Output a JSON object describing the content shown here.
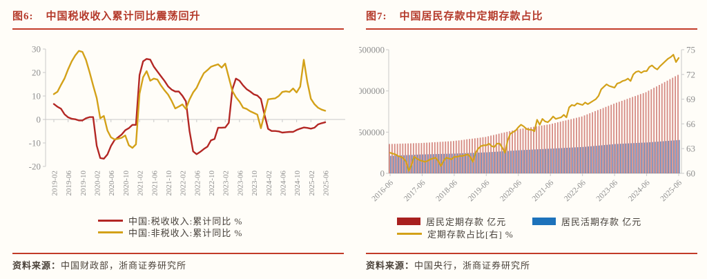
{
  "left_panel": {
    "fig_label": "图6:",
    "title": "中国税收收入累计同比震荡回升",
    "source_label": "资料来源：",
    "source": "中国财政部，浙商证券研究所"
  },
  "right_panel": {
    "fig_label": "图7:",
    "title": "中国居民存款中定期存款占比",
    "source_label": "资料来源：",
    "source": "中国央行，浙商证券研究所"
  },
  "chart_data": [
    {
      "type": "line",
      "title": "中国税收收入累计同比震荡回升",
      "x_start": "2019-02",
      "x_freq": "monthly",
      "x_tick_labels": [
        "2019-02",
        "2019-06",
        "2019-10",
        "2020-02",
        "2020-06",
        "2020-10",
        "2021-02",
        "2021-06",
        "2021-10",
        "2022-02",
        "2022-06",
        "2022-10",
        "2023-02",
        "2023-06",
        "2023-10",
        "2024-02",
        "2024-06",
        "2024-10",
        "2025-02",
        "2025-06"
      ],
      "ylim": [
        -20,
        30
      ],
      "yticks": [
        30,
        20,
        10,
        0,
        -10,
        -20
      ],
      "grid": "zero-line-only",
      "legend_position": "bottom",
      "series": [
        {
          "name": "中国:税收收入:累计同比 %",
          "color": "#b32724",
          "values": [
            6.6,
            5.4,
            4.6,
            2.2,
            0.9,
            0.3,
            0.1,
            -0.4,
            -0.4,
            0.5,
            1.0,
            1.0,
            -11.2,
            -16.4,
            -16.7,
            -14.9,
            -11.3,
            -8.8,
            -7.6,
            -6.4,
            -4.6,
            -3.7,
            -2.3,
            -2.3,
            18.9,
            24.8,
            25.8,
            25.5,
            22.5,
            20.4,
            18.4,
            16.4,
            14.1,
            12.7,
            11.9,
            11.9,
            10.1,
            7.7,
            -4.9,
            -13.6,
            -14.8,
            -13.8,
            -12.6,
            -11.6,
            -8.9,
            -8.3,
            -3.5,
            -3.5,
            -3.4,
            -1.4,
            12.9,
            17.4,
            16.5,
            14.5,
            12.9,
            11.9,
            10.7,
            10.2,
            8.7,
            2.0,
            -4.0,
            -4.9,
            -4.9,
            -5.1,
            -5.6,
            -5.4,
            -5.3,
            -5.3,
            -4.5,
            -3.9,
            -3.4,
            -3.6,
            -3.9,
            -3.5,
            -2.1,
            -1.6,
            -1.2
          ]
        },
        {
          "name": "中国:非税收入:累计同比 %",
          "color": "#d3a119",
          "values": [
            10.8,
            11.8,
            14.7,
            17.5,
            21.4,
            24.8,
            27.3,
            29.2,
            28.8,
            25.4,
            20.2,
            14.5,
            9.1,
            0.5,
            1.5,
            -4.7,
            -7.6,
            -8.5,
            -8.2,
            -7.8,
            -6.8,
            -11.0,
            -12.1,
            -10.6,
            11.0,
            18.0,
            20.6,
            16.5,
            17.4,
            17.0,
            14.5,
            12.4,
            10.6,
            7.9,
            4.7,
            5.5,
            6.4,
            4.5,
            8.5,
            11.5,
            13.5,
            16.8,
            19.7,
            21.0,
            22.4,
            23.0,
            23.5,
            22.1,
            23.8,
            17.9,
            12.1,
            9.5,
            7.6,
            5.0,
            4.5,
            3.5,
            2.8,
            2.1,
            -3.7,
            2.5,
            8.6,
            8.8,
            9.0,
            10.0,
            11.7,
            12.0,
            11.7,
            13.2,
            11.5,
            14.0,
            25.4,
            16.0,
            8.8,
            6.5,
            5.0,
            4.2,
            3.7
          ]
        }
      ]
    },
    {
      "type": "bar+line",
      "title": "中国居民存款中定期存款占比",
      "x_start": "2016-06",
      "x_freq": "monthly",
      "x_tick_labels": [
        "2016-06",
        "2017-06",
        "2018-06",
        "2019-06",
        "2020-06",
        "2021-06",
        "2022-06",
        "2023-06",
        "2024-06",
        "2025-06"
      ],
      "left_ylim": [
        0,
        1500000
      ],
      "left_yticks": [
        0,
        500000,
        1000000,
        1500000
      ],
      "right_ylim": [
        60,
        75
      ],
      "right_yticks": [
        60,
        63,
        66,
        69,
        72,
        75
      ],
      "legend_position": "bottom",
      "bar_series": [
        {
          "name": "居民定期存款 亿元",
          "color": "#a8201f",
          "bar_fill": "#bb443c",
          "values": [
            356000,
            357000,
            358000,
            359000,
            360000,
            361000,
            362000,
            363000,
            364000,
            365000,
            366000,
            367000,
            368000,
            370000,
            372000,
            374000,
            376000,
            378000,
            380000,
            382000,
            384000,
            386000,
            388000,
            390000,
            392000,
            396000,
            400000,
            404000,
            408000,
            413000,
            417000,
            421000,
            425000,
            429000,
            433000,
            438000,
            442000,
            450000,
            458000,
            465000,
            473000,
            481000,
            489000,
            496000,
            504000,
            512000,
            519000,
            527000,
            535000,
            540000,
            545000,
            550000,
            555000,
            560000,
            565000,
            570000,
            575000,
            580000,
            585000,
            590000,
            595000,
            603000,
            611000,
            619000,
            627000,
            635000,
            642000,
            650000,
            658000,
            666000,
            674000,
            682000,
            690000,
            703000,
            716000,
            729000,
            742000,
            755000,
            768000,
            780000,
            793000,
            806000,
            819000,
            832000,
            845000,
            857000,
            868000,
            880000,
            892000,
            903000,
            915000,
            927000,
            938000,
            950000,
            962000,
            973000,
            985000,
            1003000,
            1020000,
            1038000,
            1055000,
            1073000,
            1090000,
            1108000,
            1125000,
            1143000,
            1160000,
            1178000,
            1195000
          ]
        },
        {
          "name": "居民活期存款 亿元",
          "color": "#1d72bb",
          "bar_fill": "#4467a8",
          "values": [
            212000,
            213500,
            215000,
            216500,
            218000,
            219500,
            221000,
            222500,
            224000,
            225500,
            227000,
            228500,
            230000,
            230800,
            231700,
            232500,
            233300,
            234200,
            235000,
            235800,
            236700,
            237500,
            238300,
            239200,
            240000,
            241300,
            242500,
            243800,
            245000,
            246300,
            247500,
            248800,
            250000,
            251300,
            252500,
            253800,
            255000,
            257100,
            259200,
            261300,
            263300,
            265400,
            267500,
            269600,
            271700,
            273800,
            275800,
            277900,
            280000,
            281700,
            283300,
            285000,
            286700,
            288300,
            290000,
            291700,
            293300,
            295000,
            296700,
            298300,
            300000,
            301700,
            303300,
            305000,
            306700,
            308300,
            310000,
            311700,
            313300,
            315000,
            316700,
            318300,
            320000,
            322900,
            325800,
            328800,
            331700,
            334600,
            337500,
            340400,
            343300,
            346300,
            349200,
            352100,
            355000,
            356700,
            358300,
            360000,
            361700,
            363300,
            365000,
            366700,
            368300,
            370000,
            371700,
            373300,
            375000,
            377500,
            380000,
            382500,
            385000,
            387500,
            390000,
            392500,
            395000,
            397500,
            400000,
            402500,
            405000
          ]
        }
      ],
      "line_series": {
        "name": "定期存款占比[右] %",
        "color": "#d3a119",
        "axis": "right",
        "values": [
          62.5,
          62.4,
          62.3,
          62.1,
          62.0,
          61.8,
          61.4,
          60.3,
          61.0,
          62.0,
          61.8,
          61.6,
          61.5,
          61.4,
          61.5,
          61.7,
          61.8,
          61.9,
          61.5,
          60.9,
          61.5,
          61.9,
          61.8,
          61.7,
          62.0,
          62.0,
          62.1,
          62.1,
          62.2,
          62.3,
          62.0,
          61.4,
          62.5,
          63.0,
          63.3,
          63.4,
          63.4,
          63.6,
          63.3,
          63.2,
          63.6,
          63.6,
          63.1,
          62.5,
          64.0,
          64.8,
          65.0,
          65.2,
          65.6,
          65.9,
          65.7,
          65.4,
          65.3,
          65.3,
          65.1,
          66.5,
          65.9,
          66.6,
          66.3,
          66.2,
          66.5,
          66.9,
          66.6,
          66.7,
          66.8,
          67.1,
          66.8,
          68.0,
          68.3,
          68.2,
          68.5,
          68.4,
          68.3,
          68.6,
          68.4,
          68.6,
          68.8,
          69.0,
          69.4,
          70.2,
          70.5,
          70.8,
          70.6,
          70.5,
          70.4,
          70.9,
          71.0,
          71.2,
          71.3,
          71.5,
          71.2,
          72.0,
          72.3,
          72.4,
          72.2,
          72.4,
          72.4,
          72.9,
          73.1,
          72.8,
          72.6,
          73.0,
          73.3,
          73.6,
          73.9,
          74.1,
          74.4,
          73.5,
          74.0
        ]
      }
    }
  ]
}
